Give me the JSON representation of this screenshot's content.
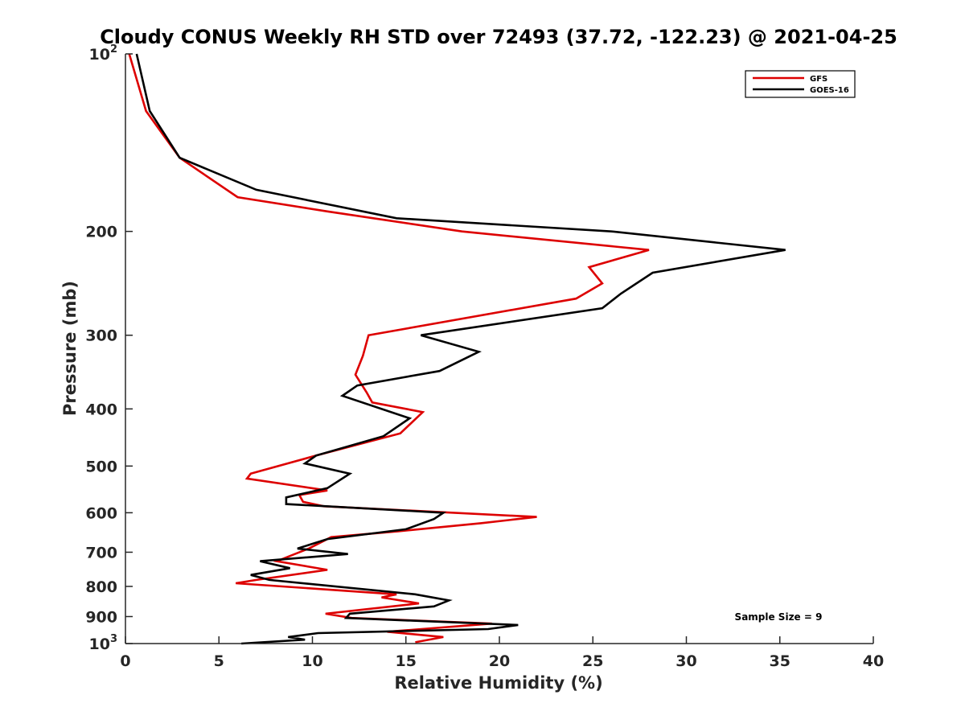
{
  "chart_data": {
    "type": "line",
    "title": "Cloudy CONUS Weekly RH STD over 72493 (37.72, -122.23) @ 2021-04-25",
    "xlabel": "Relative Humidity (%)",
    "ylabel": "Pressure (mb)",
    "xlim": [
      0,
      40
    ],
    "ylim": [
      100,
      1000
    ],
    "y_scale": "log",
    "y_reversed": true,
    "x_ticks": [
      "0",
      "5",
      "10",
      "15",
      "20",
      "25",
      "30",
      "35",
      "40"
    ],
    "y_ticks": [
      {
        "value": 100,
        "base": "10",
        "exp": "2"
      },
      {
        "value": 200,
        "label": "200"
      },
      {
        "value": 300,
        "label": "300"
      },
      {
        "value": 400,
        "label": "400"
      },
      {
        "value": 500,
        "label": "500"
      },
      {
        "value": 600,
        "label": "600"
      },
      {
        "value": 700,
        "label": "700"
      },
      {
        "value": 800,
        "label": "800"
      },
      {
        "value": 900,
        "label": "900"
      },
      {
        "value": 1000,
        "base": "10",
        "exp": "3"
      }
    ],
    "grid": false,
    "legend_position": "top-right",
    "annotation": "Sample Size = 9",
    "series": [
      {
        "name": "GFS",
        "color": "#dd0000",
        "points": [
          [
            0.2,
            100
          ],
          [
            1.1,
            125
          ],
          [
            2.9,
            150
          ],
          [
            6.0,
            175
          ],
          [
            10.8,
            185
          ],
          [
            18.0,
            200
          ],
          [
            28.0,
            215
          ],
          [
            24.8,
            230
          ],
          [
            25.5,
            245
          ],
          [
            24.1,
            260
          ],
          [
            13.0,
            300
          ],
          [
            12.7,
            325
          ],
          [
            12.3,
            350
          ],
          [
            12.9,
            375
          ],
          [
            13.2,
            390
          ],
          [
            15.9,
            405
          ],
          [
            14.7,
            440
          ],
          [
            10.2,
            480
          ],
          [
            6.7,
            515
          ],
          [
            6.5,
            525
          ],
          [
            10.8,
            550
          ],
          [
            9.3,
            560
          ],
          [
            9.5,
            575
          ],
          [
            10.6,
            585
          ],
          [
            22.0,
            610
          ],
          [
            19.0,
            625
          ],
          [
            14.6,
            645
          ],
          [
            11.0,
            660
          ],
          [
            9.8,
            690
          ],
          [
            8.1,
            725
          ],
          [
            10.8,
            750
          ],
          [
            7.0,
            780
          ],
          [
            5.9,
            790
          ],
          [
            14.5,
            825
          ],
          [
            13.7,
            835
          ],
          [
            15.7,
            855
          ],
          [
            10.7,
            890
          ],
          [
            12.1,
            905
          ],
          [
            19.6,
            925
          ],
          [
            14.0,
            955
          ],
          [
            17.0,
            975
          ],
          [
            15.5,
            995
          ]
        ]
      },
      {
        "name": "GOES-16",
        "color": "#000000",
        "points": [
          [
            0.6,
            100
          ],
          [
            1.3,
            125
          ],
          [
            2.9,
            150
          ],
          [
            7.0,
            170
          ],
          [
            14.5,
            190
          ],
          [
            26.0,
            200
          ],
          [
            35.3,
            215
          ],
          [
            28.2,
            235
          ],
          [
            26.5,
            255
          ],
          [
            25.5,
            270
          ],
          [
            15.8,
            300
          ],
          [
            18.9,
            320
          ],
          [
            16.8,
            345
          ],
          [
            12.4,
            365
          ],
          [
            11.6,
            380
          ],
          [
            15.2,
            415
          ],
          [
            13.8,
            445
          ],
          [
            10.2,
            480
          ],
          [
            9.6,
            495
          ],
          [
            12.0,
            515
          ],
          [
            10.8,
            545
          ],
          [
            8.6,
            565
          ],
          [
            8.6,
            580
          ],
          [
            17.0,
            600
          ],
          [
            16.5,
            615
          ],
          [
            15.0,
            640
          ],
          [
            10.8,
            665
          ],
          [
            9.2,
            690
          ],
          [
            11.9,
            705
          ],
          [
            7.2,
            725
          ],
          [
            8.8,
            745
          ],
          [
            6.7,
            765
          ],
          [
            7.7,
            780
          ],
          [
            15.5,
            825
          ],
          [
            17.3,
            845
          ],
          [
            16.5,
            865
          ],
          [
            12.0,
            890
          ],
          [
            11.8,
            905
          ],
          [
            21.0,
            930
          ],
          [
            19.4,
            945
          ],
          [
            10.3,
            960
          ],
          [
            8.7,
            975
          ],
          [
            9.6,
            985
          ],
          [
            6.2,
            1000
          ]
        ]
      }
    ]
  }
}
